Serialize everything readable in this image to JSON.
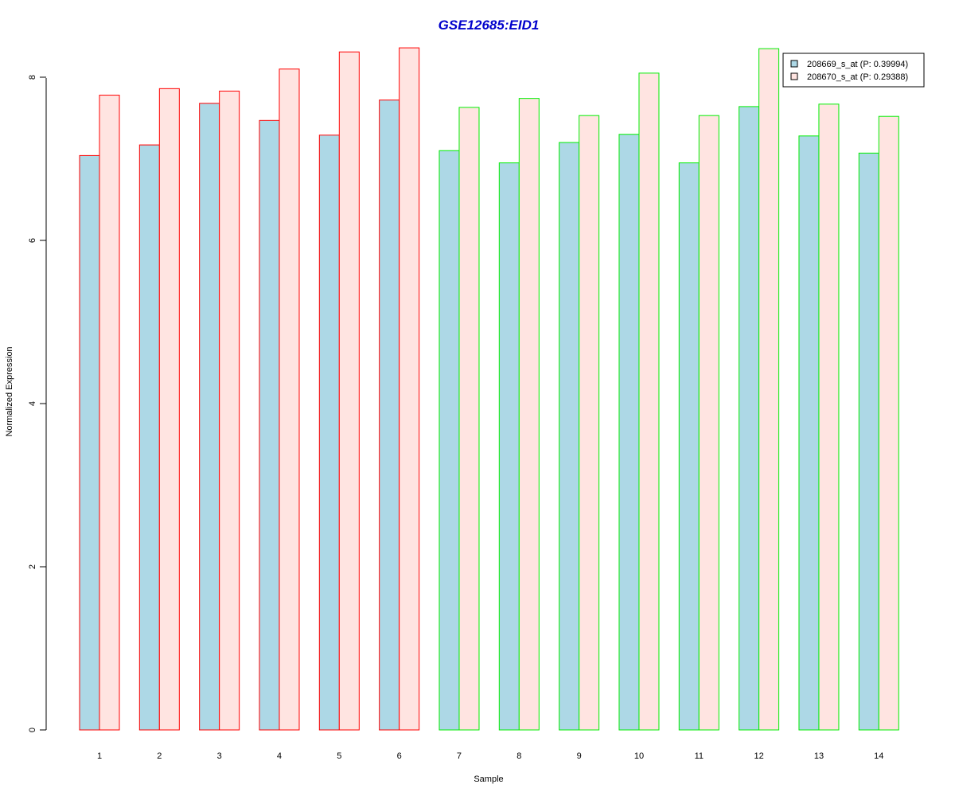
{
  "chart_data": {
    "type": "bar",
    "title": "GSE12685:EID1",
    "xlabel": "Sample",
    "ylabel": "Normalized Expression",
    "categories": [
      "1",
      "2",
      "3",
      "4",
      "5",
      "6",
      "7",
      "8",
      "9",
      "10",
      "11",
      "12",
      "13",
      "14"
    ],
    "y_ticks": [
      "0",
      "2",
      "4",
      "6",
      "8"
    ],
    "ylim": [
      0,
      8.4
    ],
    "grid": false,
    "legend_position": "top-right",
    "series": [
      {
        "name": "208669_s_at (P: 0.39994)",
        "values": [
          7.04,
          7.17,
          7.68,
          7.47,
          7.29,
          7.72,
          7.1,
          6.95,
          7.2,
          7.3,
          6.95,
          7.64,
          7.28,
          7.07
        ],
        "fill": "#add8e6"
      },
      {
        "name": "208670_s_at (P: 0.29388)",
        "values": [
          7.78,
          7.86,
          7.83,
          8.1,
          8.31,
          8.36,
          7.63,
          7.74,
          7.53,
          8.05,
          7.53,
          8.35,
          7.67,
          7.52
        ],
        "fill": "#ffe4e1"
      }
    ],
    "group_border_colors": [
      "#ff0000",
      "#ff0000",
      "#ff0000",
      "#ff0000",
      "#ff0000",
      "#ff0000",
      "#00ee00",
      "#00ee00",
      "#00ee00",
      "#00ee00",
      "#00ee00",
      "#00ee00",
      "#00ee00",
      "#00ee00"
    ],
    "title_color": "#0000cc"
  }
}
